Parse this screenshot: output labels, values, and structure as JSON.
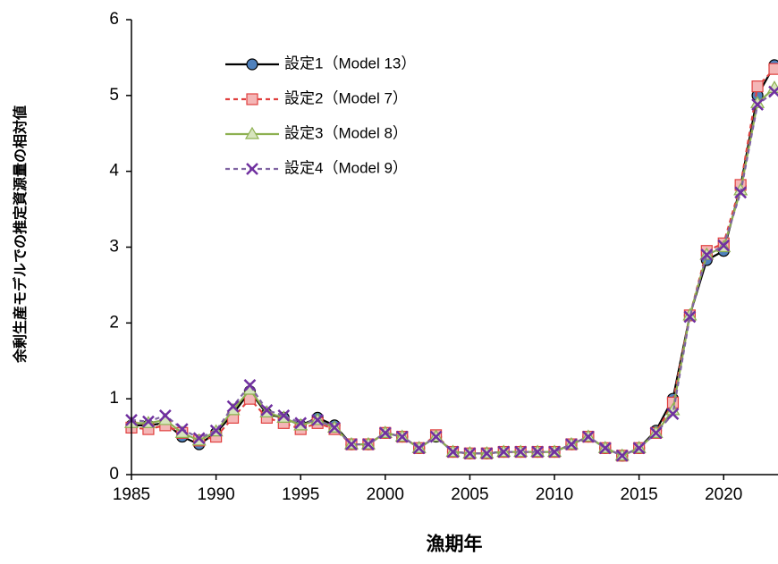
{
  "chart_data": {
    "type": "line",
    "x_label": "漁期年",
    "y_label": "余剰生産モデルでの推定資源量の相対値",
    "x": [
      1985,
      1986,
      1987,
      1988,
      1989,
      1990,
      1991,
      1992,
      1993,
      1994,
      1995,
      1996,
      1997,
      1998,
      1999,
      2000,
      2001,
      2002,
      2003,
      2004,
      2005,
      2006,
      2007,
      2008,
      2009,
      2010,
      2011,
      2012,
      2013,
      2014,
      2015,
      2016,
      2017,
      2018,
      2019,
      2020,
      2021,
      2022,
      2023
    ],
    "xlim": [
      1985,
      2023
    ],
    "xticks": [
      1985,
      1990,
      1995,
      2000,
      2005,
      2010,
      2015,
      2020
    ],
    "ylim": [
      0,
      6
    ],
    "yticks": [
      0,
      1,
      2,
      3,
      4,
      5,
      6
    ],
    "series": [
      {
        "name": "設定1（Model 13）",
        "color": "#000000",
        "marker_color": "#4f81bd",
        "marker": "circle",
        "dash": false,
        "values": [
          0.65,
          0.65,
          0.68,
          0.5,
          0.4,
          0.55,
          0.8,
          1.1,
          0.8,
          0.75,
          0.65,
          0.75,
          0.65,
          0.4,
          0.4,
          0.55,
          0.5,
          0.35,
          0.5,
          0.3,
          0.28,
          0.28,
          0.3,
          0.3,
          0.3,
          0.3,
          0.4,
          0.5,
          0.35,
          0.25,
          0.35,
          0.58,
          1.0,
          2.1,
          2.83,
          2.95,
          3.8,
          5.0,
          5.4
        ]
      },
      {
        "name": "設定2（Model 7）",
        "color": "#e0403f",
        "marker_color": "#f4b6b6",
        "marker": "square",
        "dash": true,
        "values": [
          0.62,
          0.6,
          0.65,
          0.55,
          0.45,
          0.5,
          0.75,
          1.0,
          0.75,
          0.68,
          0.6,
          0.68,
          0.6,
          0.4,
          0.4,
          0.55,
          0.5,
          0.35,
          0.52,
          0.3,
          0.28,
          0.28,
          0.3,
          0.3,
          0.3,
          0.3,
          0.4,
          0.5,
          0.35,
          0.25,
          0.35,
          0.55,
          0.95,
          2.1,
          2.95,
          3.05,
          3.82,
          5.12,
          5.35
        ]
      },
      {
        "name": "設定3（Model 8）",
        "color": "#8db050",
        "marker_color": "#d7e4bd",
        "marker": "triangle",
        "dash": false,
        "values": [
          0.68,
          0.68,
          0.72,
          0.55,
          0.45,
          0.57,
          0.85,
          1.12,
          0.82,
          0.75,
          0.65,
          0.72,
          0.62,
          0.4,
          0.4,
          0.55,
          0.5,
          0.35,
          0.5,
          0.3,
          0.28,
          0.28,
          0.3,
          0.3,
          0.3,
          0.3,
          0.4,
          0.5,
          0.35,
          0.25,
          0.35,
          0.55,
          0.85,
          2.1,
          2.9,
          3.0,
          3.75,
          4.9,
          5.1
        ]
      },
      {
        "name": "設定4（Model 9）",
        "color": "#8064a2",
        "marker_color": "#7030a0",
        "marker": "x",
        "dash": true,
        "values": [
          0.72,
          0.7,
          0.78,
          0.6,
          0.48,
          0.58,
          0.9,
          1.18,
          0.85,
          0.78,
          0.68,
          0.72,
          0.62,
          0.4,
          0.4,
          0.55,
          0.5,
          0.35,
          0.5,
          0.3,
          0.28,
          0.28,
          0.3,
          0.3,
          0.3,
          0.3,
          0.4,
          0.5,
          0.35,
          0.25,
          0.35,
          0.55,
          0.8,
          2.08,
          2.9,
          3.02,
          3.72,
          4.88,
          5.05
        ]
      }
    ]
  }
}
